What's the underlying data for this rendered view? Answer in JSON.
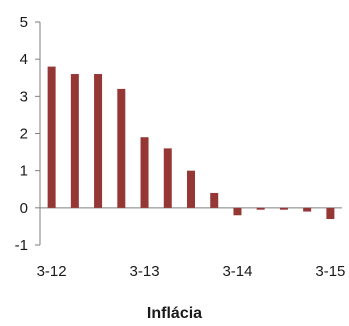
{
  "chart_data": {
    "type": "bar",
    "title": "Inflácia",
    "xlabel": "",
    "ylabel": "",
    "ylim": [
      -1,
      5
    ],
    "yticks": [
      "-1",
      "0",
      "1",
      "2",
      "3",
      "4",
      "5"
    ],
    "x_tick_labels": [
      "3-12",
      "3-13",
      "3-14",
      "3-15"
    ],
    "values": [
      3.8,
      3.6,
      3.6,
      3.2,
      1.9,
      1.6,
      1.0,
      0.4,
      -0.2,
      -0.05,
      -0.05,
      -0.1,
      -0.3
    ],
    "grid": false,
    "legend": "none",
    "bar_color": "#953735",
    "axis_color": "#7f7f7f"
  }
}
